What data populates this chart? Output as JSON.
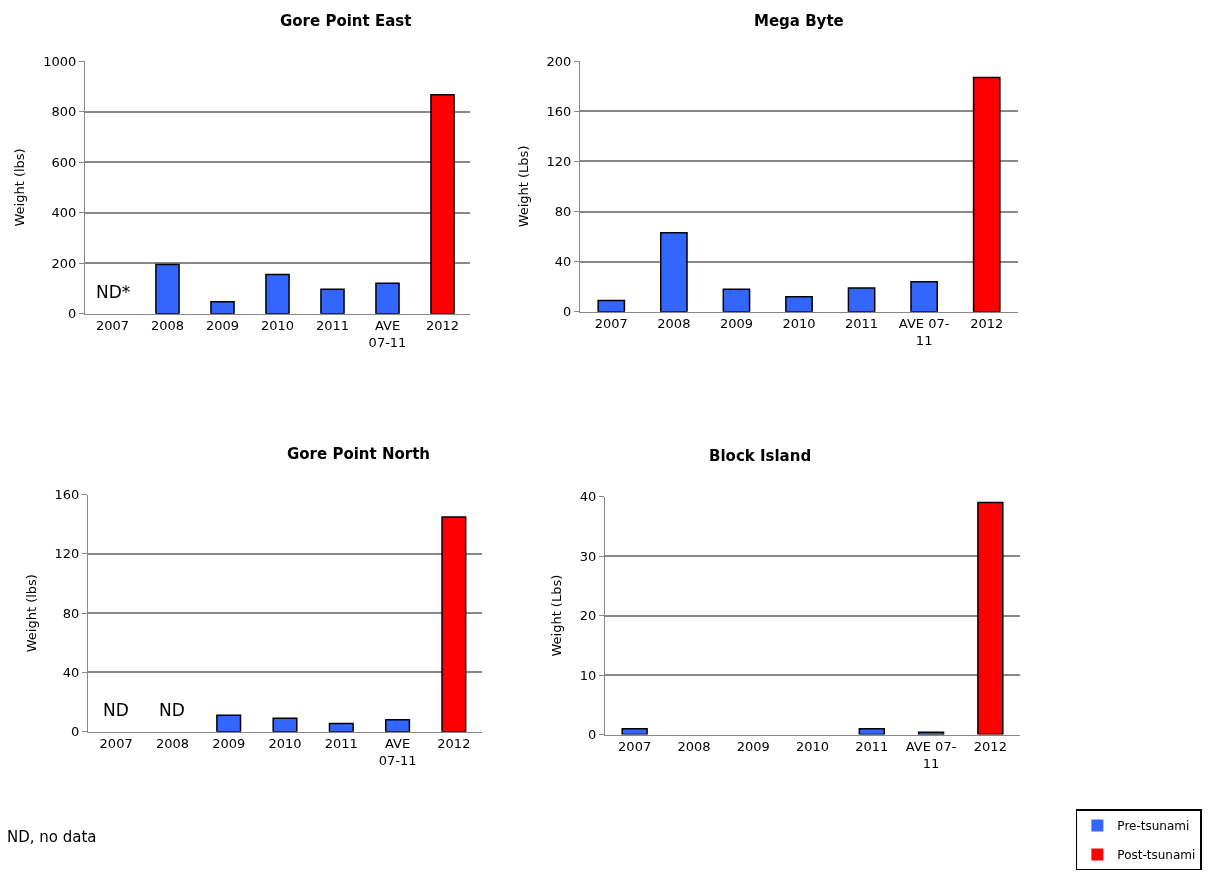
{
  "chart_data": [
    {
      "type": "bar",
      "title": "Gore Point East",
      "ylabel": "Weight (lbs)",
      "categories": [
        "2007",
        "2008",
        "2009",
        "2010",
        "2011",
        "AVE\n07-11",
        "2012"
      ],
      "ylim": [
        0,
        1000
      ],
      "yticks": [
        0,
        200,
        400,
        600,
        800,
        1000
      ],
      "grid": "y",
      "legend": "bottom right",
      "series": [
        {
          "name": "Pre-tsunami",
          "color": "#3366ff",
          "values": [
            null,
            195,
            48,
            155,
            97,
            121,
            null
          ]
        },
        {
          "name": "Post-tsunami",
          "color": "#ff0000",
          "values": [
            null,
            null,
            null,
            null,
            null,
            null,
            867
          ]
        }
      ],
      "annotations": [
        "ND*"
      ]
    },
    {
      "type": "bar",
      "title": "Mega Byte",
      "ylabel": "Weight (Lbs)",
      "categories": [
        "2007",
        "2008",
        "2009",
        "2010",
        "2011",
        "AVE 07-\n11",
        "2012"
      ],
      "ylim": [
        0,
        200
      ],
      "yticks": [
        0,
        40,
        80,
        120,
        160,
        200
      ],
      "grid": "y",
      "legend": "bottom right",
      "series": [
        {
          "name": "Pre-tsunami",
          "color": "#3366ff",
          "values": [
            9,
            63,
            18,
            12,
            19,
            24,
            null
          ]
        },
        {
          "name": "Post-tsunami",
          "color": "#ff0000",
          "values": [
            null,
            null,
            null,
            null,
            null,
            null,
            187
          ]
        }
      ]
    },
    {
      "type": "bar",
      "title": "Gore Point North",
      "ylabel": "Weight (lbs)",
      "categories": [
        "2007",
        "2008",
        "2009",
        "2010",
        "2011",
        "AVE\n07-11",
        "2012"
      ],
      "ylim": [
        0,
        160
      ],
      "yticks": [
        0,
        40,
        80,
        120,
        160
      ],
      "grid": "y",
      "legend": "bottom right",
      "series": [
        {
          "name": "Pre-tsunami",
          "color": "#3366ff",
          "values": [
            null,
            null,
            11,
            9,
            5.5,
            8,
            null
          ]
        },
        {
          "name": "Post-tsunami",
          "color": "#ff0000",
          "values": [
            null,
            null,
            null,
            null,
            null,
            null,
            145
          ]
        }
      ],
      "annotations": [
        "ND",
        "ND",
        "ND, no data"
      ]
    },
    {
      "type": "bar",
      "title": "Block Island",
      "ylabel": "Weight (Lbs)",
      "categories": [
        "2007",
        "2008",
        "2009",
        "2010",
        "2011",
        "AVE 07-\n11",
        "2012"
      ],
      "ylim": [
        0,
        40
      ],
      "yticks": [
        0,
        10,
        20,
        30,
        40
      ],
      "grid": "y",
      "legend": "bottom right",
      "series": [
        {
          "name": "Pre-tsunami",
          "color": "#3366ff",
          "values": [
            1,
            0,
            0,
            0,
            1,
            0.4,
            null
          ]
        },
        {
          "name": "Post-tsunami",
          "color": "#ff0000",
          "values": [
            null,
            null,
            null,
            null,
            null,
            null,
            39
          ]
        }
      ]
    }
  ]
}
